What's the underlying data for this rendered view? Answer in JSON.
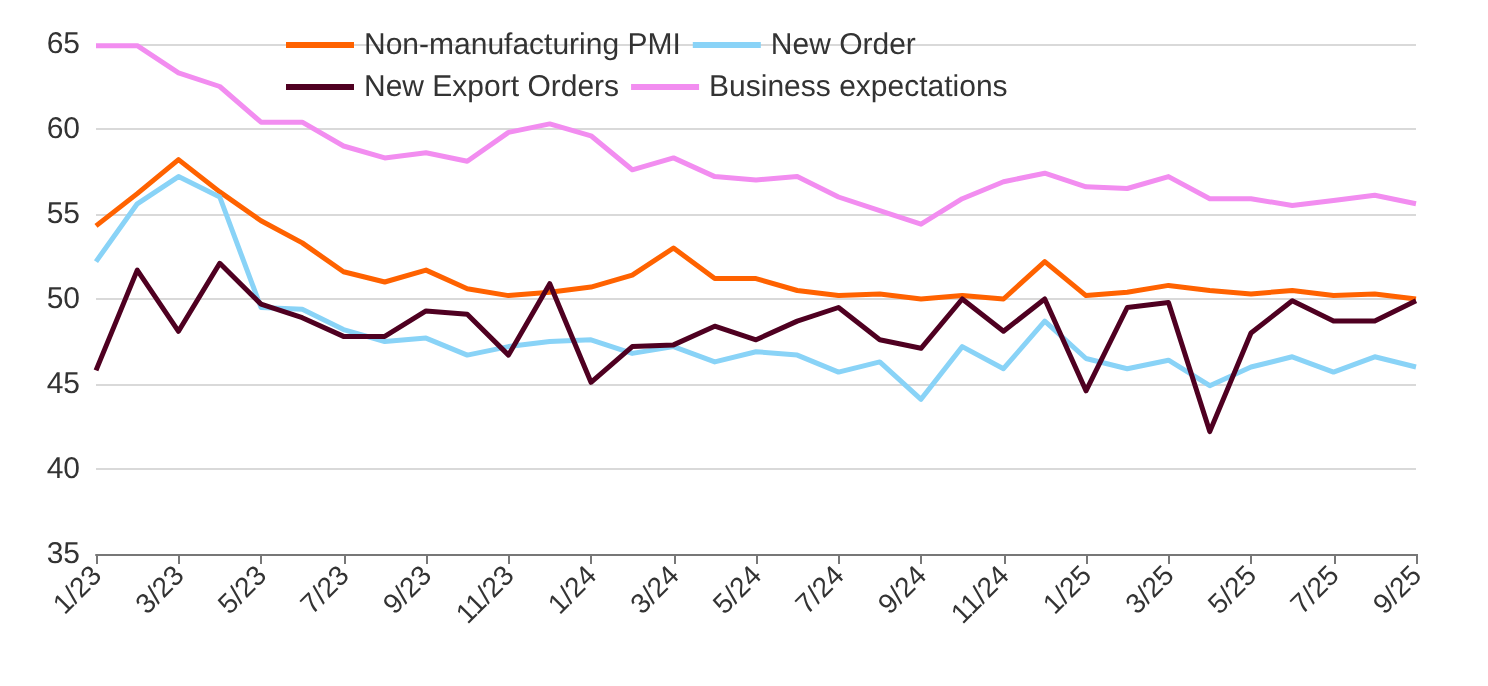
{
  "chart_data": {
    "type": "line",
    "categories": [
      "1/23",
      null,
      "3/23",
      null,
      "5/23",
      null,
      "7/23",
      null,
      "9/23",
      null,
      "11/23",
      null,
      "1/24",
      null,
      "3/24",
      null,
      "5/24",
      null,
      "7/24",
      null,
      "9/24",
      null,
      "11/24",
      null,
      "1/25",
      null,
      "3/25",
      null,
      "5/25",
      null,
      "7/25",
      null,
      "9/25"
    ],
    "series": [
      {
        "name": "Non-manufacturing PMI",
        "color": "#ff6200",
        "values": [
          54.3,
          56.2,
          58.2,
          56.3,
          54.6,
          53.3,
          51.6,
          51.0,
          51.7,
          50.6,
          50.2,
          50.4,
          50.7,
          51.4,
          53.0,
          51.2,
          51.2,
          50.5,
          50.2,
          50.3,
          50.0,
          50.2,
          50.0,
          52.2,
          50.2,
          50.4,
          50.8,
          50.5,
          50.3,
          50.5,
          50.2,
          50.3,
          50.0
        ]
      },
      {
        "name": "New Order",
        "color": "#89d3f7",
        "values": [
          52.2,
          55.6,
          57.2,
          56.0,
          49.5,
          49.4,
          48.2,
          47.5,
          47.7,
          46.7,
          47.2,
          47.5,
          47.6,
          46.8,
          47.2,
          46.3,
          46.9,
          46.7,
          45.7,
          46.3,
          44.1,
          47.2,
          45.9,
          48.7,
          46.5,
          45.9,
          46.4,
          44.9,
          46.0,
          46.6,
          45.7,
          46.6,
          46.0
        ]
      },
      {
        "name": "New Export Orders",
        "color": "#4f0021",
        "values": [
          45.8,
          51.7,
          48.1,
          52.1,
          49.7,
          48.9,
          47.8,
          47.8,
          49.3,
          49.1,
          46.7,
          50.9,
          45.1,
          47.2,
          47.3,
          48.4,
          47.6,
          48.7,
          49.5,
          47.6,
          47.1,
          50.0,
          48.1,
          50.0,
          44.6,
          49.5,
          49.8,
          42.2,
          48.0,
          49.9,
          48.7,
          48.7,
          49.9
        ]
      },
      {
        "name": "Business expectations",
        "color": "#f28df0",
        "values": [
          64.9,
          64.9,
          63.3,
          62.5,
          60.4,
          60.4,
          59.0,
          58.3,
          58.6,
          58.1,
          59.8,
          60.3,
          59.6,
          57.6,
          58.3,
          57.2,
          57.0,
          57.2,
          56.0,
          55.2,
          54.4,
          55.9,
          56.9,
          57.4,
          56.6,
          56.5,
          57.2,
          55.9,
          55.9,
          55.5,
          55.8,
          56.1,
          55.6
        ]
      }
    ],
    "ylim": [
      35,
      65
    ],
    "yticks": [
      35,
      40,
      45,
      50,
      55,
      60,
      65
    ],
    "grid": "y",
    "legend": "top",
    "marker": "none",
    "line_style": "solid"
  }
}
